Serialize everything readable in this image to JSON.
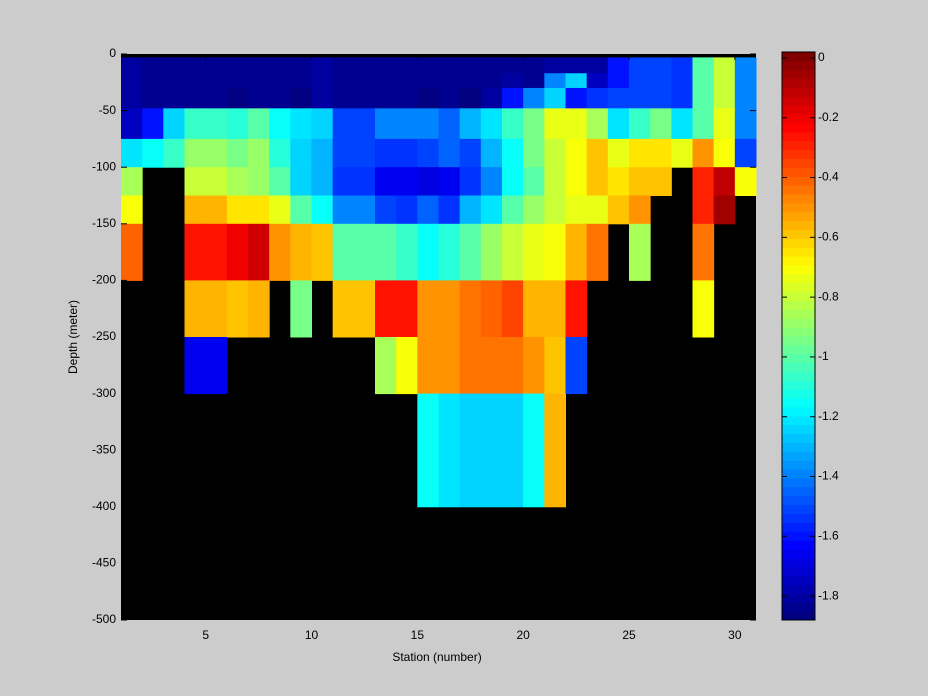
{
  "chart_data": {
    "type": "heatmap",
    "xlabel": "Station (number)",
    "ylabel": "Depth (meter)",
    "x_edges": [
      1,
      2,
      3,
      4,
      5,
      6,
      7,
      8,
      9,
      10,
      11,
      12,
      13,
      14,
      15,
      16,
      17,
      18,
      19,
      20,
      21,
      22,
      23,
      24,
      25,
      26,
      27,
      28,
      29,
      30,
      31
    ],
    "y_edges": [
      0,
      -3,
      -17,
      -30,
      -48,
      -75,
      -100,
      -125,
      -150,
      -200,
      -250,
      -300,
      -400,
      -500
    ],
    "z": [
      [
        null,
        null,
        null,
        null,
        null,
        null,
        null,
        null,
        null,
        null,
        null,
        null,
        null,
        null,
        null,
        null,
        null,
        null,
        null,
        null,
        null,
        null,
        null,
        null,
        null,
        null,
        null,
        null,
        null,
        null
      ],
      [
        -1.8,
        -1.85,
        -1.85,
        -1.85,
        -1.85,
        -1.85,
        -1.85,
        -1.85,
        -1.85,
        -1.8,
        -1.85,
        -1.85,
        -1.85,
        -1.85,
        -1.85,
        -1.85,
        -1.85,
        -1.85,
        -1.85,
        -1.85,
        -1.8,
        -1.8,
        -1.8,
        -1.6,
        -1.5,
        -1.5,
        -1.55,
        -1.0,
        -0.8,
        -1.4
      ],
      [
        -1.8,
        -1.85,
        -1.85,
        -1.85,
        -1.85,
        -1.85,
        -1.85,
        -1.85,
        -1.85,
        -1.8,
        -1.85,
        -1.85,
        -1.85,
        -1.85,
        -1.85,
        -1.85,
        -1.85,
        -1.85,
        -1.8,
        -1.85,
        -1.4,
        -1.25,
        -1.75,
        -1.6,
        -1.5,
        -1.5,
        -1.55,
        -1.0,
        -0.8,
        -1.4
      ],
      [
        -1.8,
        -1.85,
        -1.85,
        -1.85,
        -1.85,
        -1.9,
        -1.85,
        -1.85,
        -1.9,
        -1.8,
        -1.85,
        -1.85,
        -1.85,
        -1.85,
        -1.9,
        -1.85,
        -1.9,
        -1.8,
        -1.6,
        -1.4,
        -1.25,
        -1.6,
        -1.55,
        -1.5,
        -1.5,
        -1.5,
        -1.55,
        -1.0,
        -0.8,
        -1.4
      ],
      [
        -1.75,
        -1.6,
        -1.25,
        -1.05,
        -1.05,
        -1.1,
        -1.0,
        -1.15,
        -1.2,
        -1.25,
        -1.5,
        -1.5,
        -1.4,
        -1.4,
        -1.4,
        -1.45,
        -1.3,
        -1.2,
        -1.05,
        -0.95,
        -0.75,
        -0.75,
        -0.85,
        -1.2,
        -1.05,
        -0.95,
        -1.2,
        -1.0,
        -0.75,
        -1.4
      ],
      [
        -1.2,
        -1.15,
        -1.05,
        -0.9,
        -0.9,
        -0.95,
        -0.9,
        -1.1,
        -1.25,
        -1.3,
        -1.5,
        -1.5,
        -1.55,
        -1.55,
        -1.5,
        -1.45,
        -1.5,
        -1.3,
        -1.15,
        -0.95,
        -0.8,
        -0.7,
        -0.6,
        -0.75,
        -0.65,
        -0.65,
        -0.75,
        -0.5,
        -0.7,
        -1.5
      ],
      [
        -0.85,
        null,
        null,
        -0.8,
        -0.8,
        -0.85,
        -0.9,
        -1.0,
        -1.25,
        -1.3,
        -1.55,
        -1.55,
        -1.65,
        -1.65,
        -1.7,
        -1.65,
        -1.55,
        -1.4,
        -1.15,
        -1.0,
        -0.8,
        -0.7,
        -0.6,
        -0.65,
        -0.6,
        -0.6,
        null,
        -0.3,
        -0.1,
        -0.7
      ],
      [
        -0.7,
        null,
        null,
        -0.55,
        -0.55,
        -0.65,
        -0.65,
        -0.75,
        -1.0,
        -1.15,
        -1.4,
        -1.4,
        -1.5,
        -1.55,
        -1.45,
        -1.55,
        -1.3,
        -1.2,
        -1.0,
        -0.9,
        -0.8,
        -0.75,
        -0.75,
        -0.6,
        -0.5,
        null,
        null,
        -0.3,
        -0.05,
        null
      ],
      [
        -0.4,
        null,
        null,
        -0.25,
        -0.25,
        -0.2,
        -0.15,
        -0.5,
        -0.55,
        -0.6,
        -1.0,
        -1.0,
        -1.0,
        -1.05,
        -1.15,
        -1.1,
        -1.0,
        -0.9,
        -0.8,
        -0.75,
        -0.7,
        -0.55,
        -0.45,
        null,
        -0.85,
        null,
        null,
        -0.45,
        null,
        null
      ],
      [
        null,
        null,
        null,
        -0.55,
        -0.55,
        -0.6,
        -0.55,
        null,
        -0.95,
        null,
        -0.6,
        -0.6,
        -0.25,
        -0.25,
        -0.5,
        -0.5,
        -0.45,
        -0.4,
        -0.35,
        -0.55,
        -0.55,
        -0.25,
        null,
        null,
        null,
        null,
        null,
        -0.7,
        null,
        null
      ],
      [
        null,
        null,
        null,
        -1.65,
        -1.65,
        null,
        null,
        null,
        null,
        null,
        null,
        null,
        -0.85,
        -0.7,
        -0.5,
        -0.5,
        -0.45,
        -0.45,
        -0.45,
        -0.5,
        -0.6,
        -1.5,
        null,
        null,
        null,
        null,
        null,
        null,
        null,
        null
      ],
      [
        null,
        null,
        null,
        null,
        null,
        null,
        null,
        null,
        null,
        null,
        null,
        null,
        null,
        null,
        -1.15,
        -1.2,
        -1.25,
        -1.25,
        -1.25,
        -1.15,
        -0.55,
        null,
        null,
        null,
        null,
        null,
        null,
        null,
        null,
        null
      ],
      [
        null,
        null,
        null,
        null,
        null,
        null,
        null,
        null,
        null,
        null,
        null,
        null,
        null,
        null,
        null,
        null,
        null,
        null,
        null,
        null,
        null,
        null,
        null,
        null,
        null,
        null,
        null,
        null,
        null,
        null
      ]
    ],
    "xlim": [
      1,
      31
    ],
    "ylim": [
      -500,
      0
    ],
    "xticks": [
      5,
      10,
      15,
      20,
      25,
      30
    ],
    "yticks": [
      0,
      -50,
      -100,
      -150,
      -200,
      -250,
      -300,
      -350,
      -400,
      -450,
      -500
    ],
    "clim": [
      -1.88,
      0.02
    ],
    "cticks": [
      0,
      -0.2,
      -0.4,
      -0.6,
      -0.8,
      -1,
      -1.2,
      -1.4,
      -1.6,
      -1.8
    ],
    "colormap": "jet",
    "colormap_levels": 64,
    "nan_color": "#000000"
  }
}
